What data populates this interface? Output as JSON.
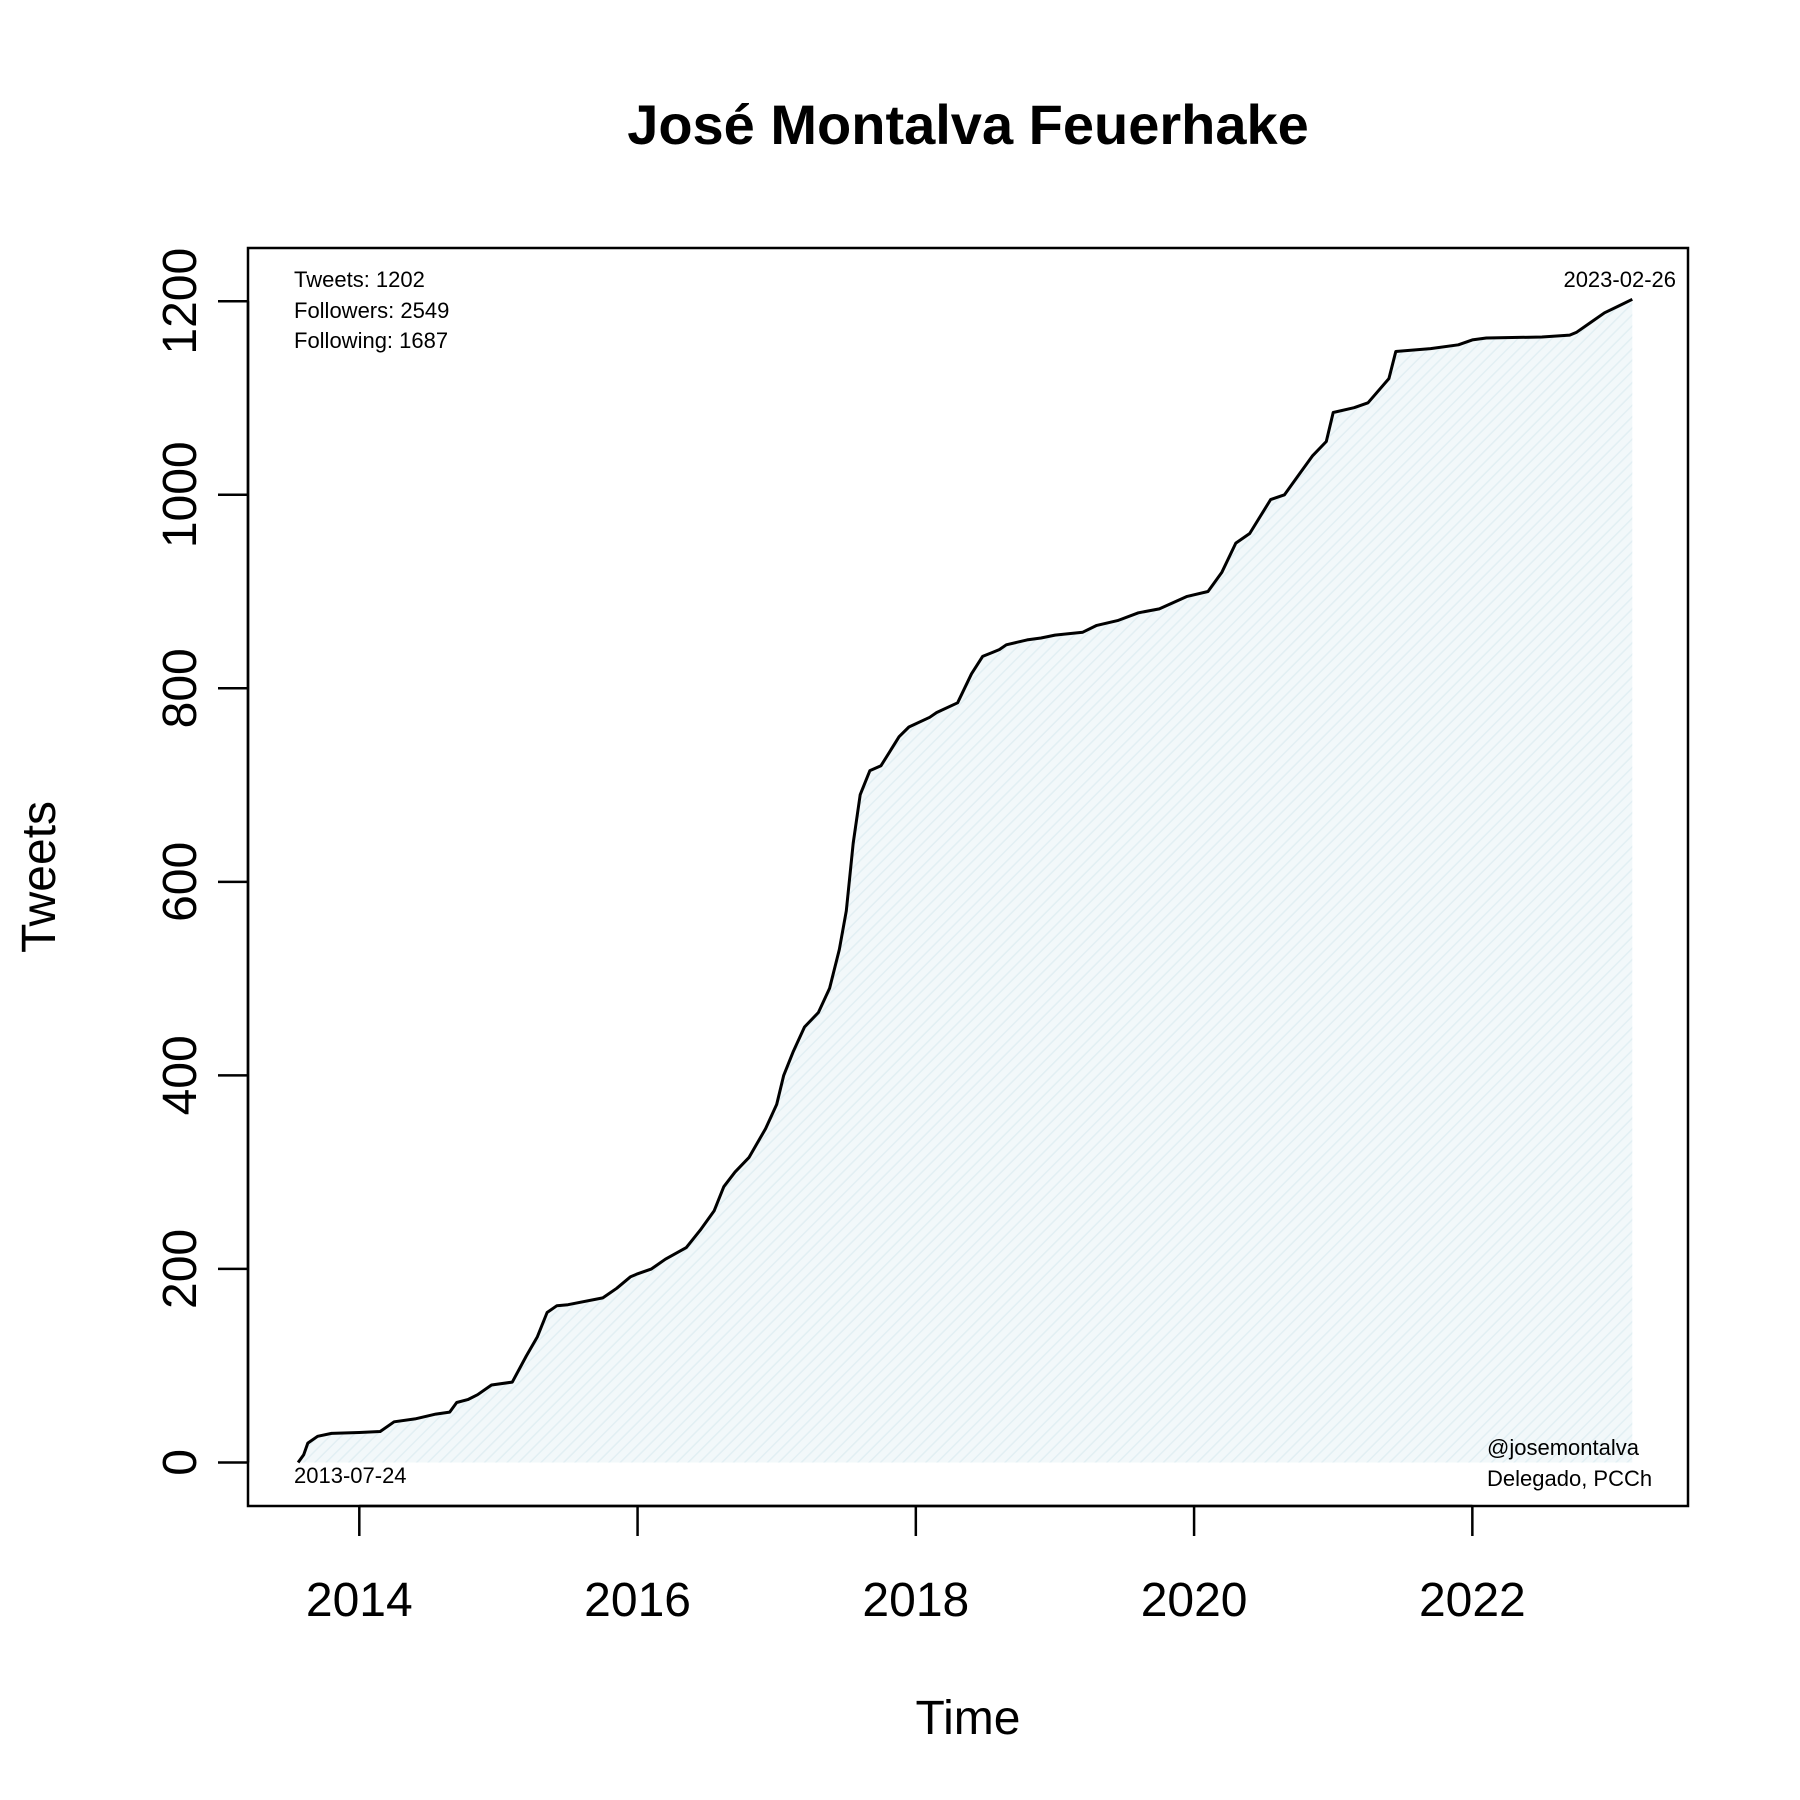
{
  "chart_data": {
    "type": "area",
    "title": "José Montalva Feuerhake",
    "xlabel": "Time",
    "ylabel": "Tweets",
    "xlim": [
      2013.2,
      2023.55
    ],
    "ylim": [
      -45,
      1255
    ],
    "x_ticks": [
      2014,
      2016,
      2018,
      2020,
      2022
    ],
    "x_tick_labels": [
      "2014",
      "2016",
      "2018",
      "2020",
      "2022"
    ],
    "y_ticks": [
      0,
      200,
      400,
      600,
      800,
      1000,
      1200
    ],
    "y_tick_labels": [
      "0",
      "200",
      "400",
      "600",
      "800",
      "1000",
      "1200"
    ],
    "grid": false,
    "fill_color": "#eaf4f7",
    "line_color": "#000000",
    "annotations": {
      "stats": [
        "Tweets: 1202",
        "Followers: 2549",
        "Following: 1687"
      ],
      "start_date": "2013-07-24",
      "end_date": "2023-02-26",
      "handle": "@josemontalva",
      "description": "Delegado, PCCh"
    },
    "series": [
      {
        "x": [
          2013.56,
          2013.6,
          2013.63,
          2013.7,
          2013.8,
          2014.0,
          2014.15,
          2014.25,
          2014.4,
          2014.55,
          2014.65,
          2014.7,
          2014.78,
          2014.85,
          2014.95,
          2015.1,
          2015.2,
          2015.28,
          2015.35,
          2015.42,
          2015.5,
          2015.75,
          2015.85,
          2015.95,
          2016.0,
          2016.1,
          2016.2,
          2016.35,
          2016.45,
          2016.55,
          2016.62,
          2016.7,
          2016.8,
          2016.92,
          2017.0,
          2017.05,
          2017.12,
          2017.2,
          2017.3,
          2017.38,
          2017.45,
          2017.5,
          2017.55,
          2017.6,
          2017.67,
          2017.75,
          2017.88,
          2017.95,
          2018.1,
          2018.15,
          2018.3,
          2018.4,
          2018.48,
          2018.55,
          2018.6,
          2018.65,
          2018.8,
          2018.9,
          2019.0,
          2019.2,
          2019.3,
          2019.45,
          2019.6,
          2019.75,
          2019.95,
          2020.1,
          2020.2,
          2020.3,
          2020.4,
          2020.55,
          2020.65,
          2020.75,
          2020.85,
          2020.95,
          2021.0,
          2021.15,
          2021.25,
          2021.4,
          2021.45,
          2021.7,
          2021.9,
          2022.0,
          2022.1,
          2022.5,
          2022.7,
          2022.75,
          2022.85,
          2022.95,
          2023.05,
          2023.15
        ],
        "y": [
          0,
          8,
          20,
          27,
          30,
          31,
          32,
          42,
          45,
          50,
          52,
          62,
          65,
          70,
          80,
          83,
          110,
          130,
          155,
          162,
          163,
          170,
          180,
          192,
          195,
          200,
          210,
          222,
          240,
          260,
          285,
          300,
          315,
          345,
          370,
          400,
          425,
          450,
          465,
          490,
          530,
          570,
          640,
          690,
          715,
          720,
          750,
          760,
          770,
          775,
          785,
          815,
          833,
          837,
          840,
          845,
          850,
          852,
          855,
          858,
          865,
          870,
          878,
          882,
          895,
          900,
          920,
          950,
          960,
          995,
          1000,
          1020,
          1040,
          1055,
          1085,
          1090,
          1095,
          1120,
          1148,
          1151,
          1155,
          1160,
          1162,
          1163,
          1165,
          1168,
          1178,
          1188,
          1195,
          1202
        ]
      }
    ]
  }
}
